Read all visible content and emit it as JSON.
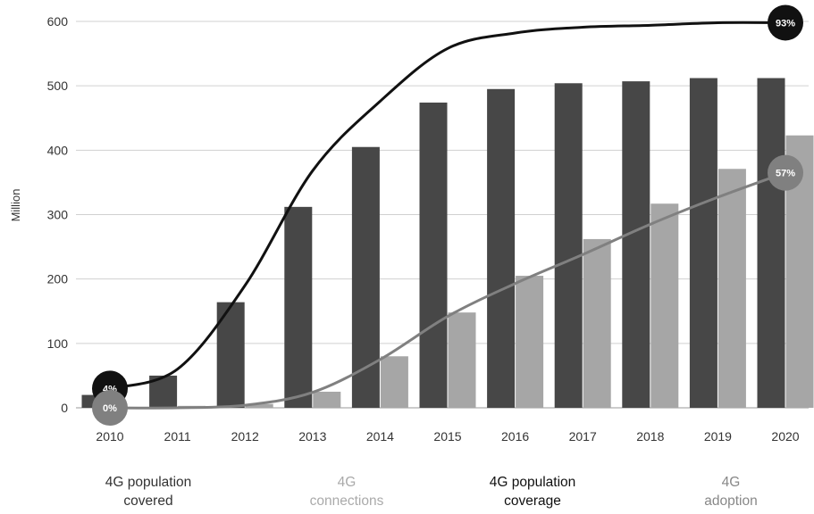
{
  "chart_data": {
    "type": "bar",
    "ylabel": "Million",
    "ylim": [
      0,
      600
    ],
    "yticks": [
      0,
      100,
      200,
      300,
      400,
      500,
      600
    ],
    "grid": true,
    "categories": [
      "2010",
      "2011",
      "2012",
      "2013",
      "2014",
      "2015",
      "2016",
      "2017",
      "2018",
      "2019",
      "2020"
    ],
    "series": [
      {
        "type": "bar",
        "color": "#474747",
        "values": [
          20,
          50,
          164,
          312,
          405,
          474,
          495,
          504,
          507,
          512,
          512
        ]
      },
      {
        "type": "bar",
        "color": "#a6a6a6",
        "values": [
          1,
          3,
          6,
          25,
          80,
          148,
          205,
          262,
          317,
          371,
          423
        ]
      },
      {
        "type": "line",
        "color": "#111111",
        "values": [
          30,
          60,
          190,
          368,
          476,
          558,
          582,
          591,
          594,
          598,
          598
        ],
        "point_labels": [
          {
            "index": 0,
            "text": "4%"
          },
          {
            "index": 10,
            "text": "93%"
          }
        ]
      },
      {
        "type": "line",
        "color": "#808080",
        "values": [
          0,
          0,
          4,
          24,
          75,
          142,
          193,
          238,
          285,
          327,
          365
        ],
        "point_labels": [
          {
            "index": 0,
            "text": "0%"
          },
          {
            "index": 10,
            "text": "57%"
          }
        ]
      }
    ],
    "legend": [
      {
        "lines": [
          "4G population",
          "covered"
        ],
        "color": "#333333"
      },
      {
        "lines": [
          "4G",
          "connections"
        ],
        "color": "#aaaaaa"
      },
      {
        "lines": [
          "4G population",
          "coverage"
        ],
        "color": "#111111"
      },
      {
        "lines": [
          "4G",
          "adoption"
        ],
        "color": "#888888"
      }
    ],
    "legend_position": "bottom"
  }
}
